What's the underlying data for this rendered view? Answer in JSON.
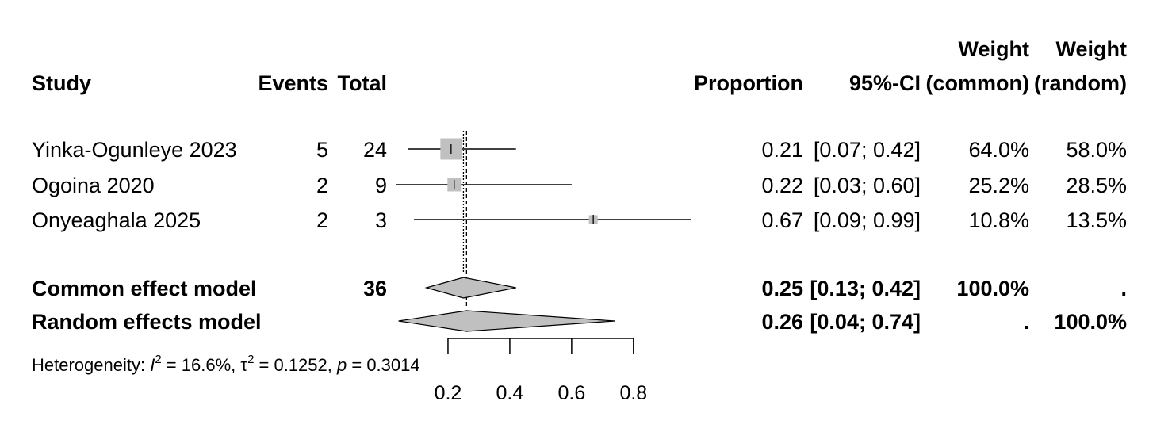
{
  "headers": {
    "study": "Study",
    "events": "Events",
    "total": "Total",
    "proportion": "Proportion",
    "ci": "95%-CI",
    "weight_common_top": "Weight",
    "weight_common_bottom": "(common)",
    "weight_random_top": "Weight",
    "weight_random_bottom": "(random)"
  },
  "chart_data": {
    "type": "forest",
    "xlim": [
      0.0,
      1.0
    ],
    "x_ticks": [
      0.2,
      0.4,
      0.6,
      0.8
    ],
    "x_tick_labels": [
      "0.2",
      "0.4",
      "0.6",
      "0.8"
    ],
    "studies": [
      {
        "study": "Yinka-Ogunleye 2023",
        "events": "5",
        "total": "24",
        "proportion": 0.21,
        "lower": 0.07,
        "upper": 0.42,
        "prop_label": "0.21",
        "ci_label": "[0.07; 0.42]",
        "w_common": 64.0,
        "w_random": 58.0,
        "w_common_label": "64.0%",
        "w_random_label": "58.0%"
      },
      {
        "study": "Ogoina 2020",
        "events": "2",
        "total": "9",
        "proportion": 0.22,
        "lower": 0.03,
        "upper": 0.6,
        "prop_label": "0.22",
        "ci_label": "[0.03; 0.60]",
        "w_common": 25.2,
        "w_random": 28.5,
        "w_common_label": "25.2%",
        "w_random_label": "28.5%"
      },
      {
        "study": "Onyeaghala 2025",
        "events": "2",
        "total": "3",
        "proportion": 0.67,
        "lower": 0.09,
        "upper": 0.99,
        "prop_label": "0.67",
        "ci_label": "[0.09; 0.99]",
        "w_common": 10.8,
        "w_random": 13.5,
        "w_common_label": "10.8%",
        "w_random_label": "13.5%"
      }
    ],
    "pooled": [
      {
        "label": "Common effect model",
        "total": "36",
        "estimate": 0.25,
        "lower": 0.13,
        "upper": 0.42,
        "prop_label": "0.25",
        "ci_label": "[0.13; 0.42]",
        "w_common_label": "100.0%",
        "w_random_label": "."
      },
      {
        "label": "Random effects model",
        "total": "",
        "estimate": 0.26,
        "lower": 0.04,
        "upper": 0.74,
        "prop_label": "0.26",
        "ci_label": "[0.04; 0.74]",
        "w_common_label": ".",
        "w_random_label": "100.0%"
      }
    ],
    "heterogeneity": {
      "prefix": "Heterogeneity: ",
      "i2_symbol": "I",
      "i2_value": " = 16.6%, ",
      "tau_symbol": "τ",
      "tau_value": " = 0.1252, ",
      "p_symbol": "p",
      "p_value": " = 0.3014"
    },
    "colors": {
      "box": "#c0c0c0",
      "diamond": "#c0c0c0",
      "line": "#000000"
    }
  }
}
